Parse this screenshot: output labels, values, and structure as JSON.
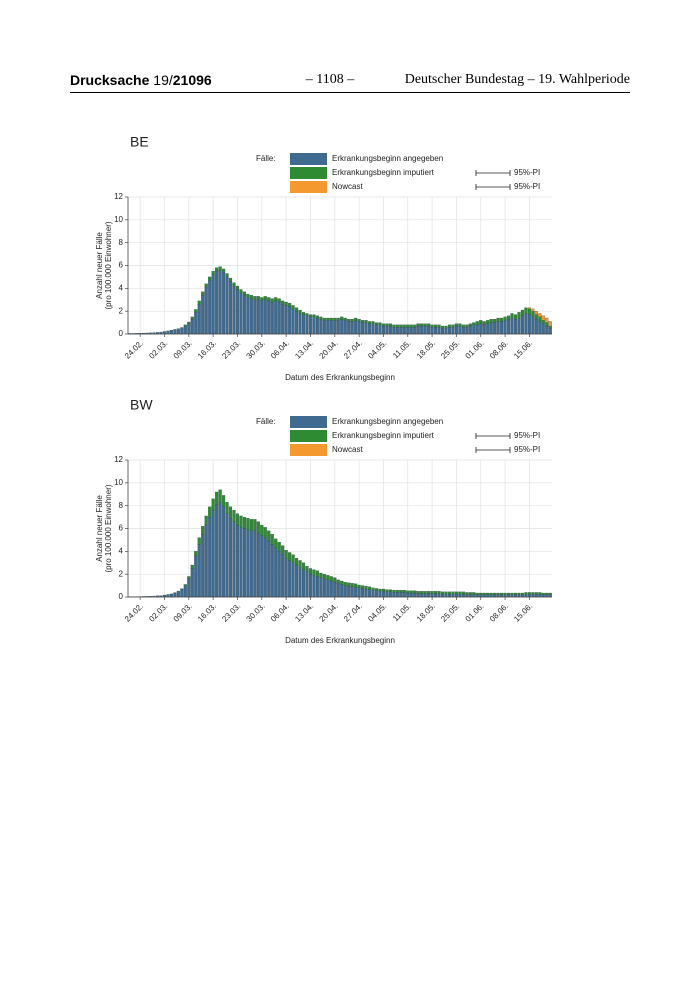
{
  "header": {
    "label": "Drucksache",
    "number_prefix": "19/",
    "number": "21096",
    "page": "– 1108 –",
    "publisher": "Deutscher Bundestag – 19. Wahlperiode"
  },
  "chart_data": [
    {
      "type": "bar",
      "stacked": true,
      "title": "BE",
      "legend_title": "Fälle:",
      "interval_labels": [
        "95%-PI",
        "95%-PI"
      ],
      "ylabel": [
        "Anzahl neuer Fälle",
        "(pro 100.000 Einwohner)"
      ],
      "xlabel": "Datum des Erkrankungsbeginn",
      "ylim": [
        0,
        12
      ],
      "yticks": [
        0,
        2,
        4,
        6,
        8,
        10,
        12
      ],
      "grid": true,
      "categories": [
        null,
        null,
        null,
        "24.02.",
        null,
        null,
        null,
        null,
        null,
        null,
        "02.03.",
        null,
        null,
        null,
        null,
        null,
        null,
        "09.03.",
        null,
        null,
        null,
        null,
        null,
        null,
        "16.03.",
        null,
        null,
        null,
        null,
        null,
        null,
        "23.03.",
        null,
        null,
        null,
        null,
        null,
        null,
        "30.03.",
        null,
        null,
        null,
        null,
        null,
        null,
        "06.04.",
        null,
        null,
        null,
        null,
        null,
        null,
        "13.04.",
        null,
        null,
        null,
        null,
        null,
        null,
        "20.04.",
        null,
        null,
        null,
        null,
        null,
        null,
        "27.04.",
        null,
        null,
        null,
        null,
        null,
        null,
        "04.05.",
        null,
        null,
        null,
        null,
        null,
        null,
        "11.05.",
        null,
        null,
        null,
        null,
        null,
        null,
        "18.05.",
        null,
        null,
        null,
        null,
        null,
        null,
        "25.05.",
        null,
        null,
        null,
        null,
        null,
        null,
        "01.06.",
        null,
        null,
        null,
        null,
        null,
        null,
        "08.06.",
        null,
        null,
        null,
        null,
        null,
        null,
        "15.06.",
        null,
        null,
        null,
        null,
        null,
        null
      ],
      "series": [
        {
          "name": "Erkrankungsbeginn angegeben",
          "color": "#3f6b90",
          "values": [
            0.05,
            0.05,
            0.06,
            0.07,
            0.08,
            0.09,
            0.1,
            0.12,
            0.14,
            0.17,
            0.2,
            0.25,
            0.3,
            0.38,
            0.45,
            0.55,
            0.7,
            0.9,
            1.3,
            1.9,
            2.6,
            3.4,
            4.1,
            4.7,
            5.2,
            5.5,
            5.6,
            5.4,
            5.0,
            4.6,
            4.2,
            3.9,
            3.6,
            3.4,
            3.2,
            3.1,
            3.0,
            3.0,
            2.9,
            3.0,
            2.9,
            2.8,
            2.9,
            2.8,
            2.6,
            2.5,
            2.4,
            2.2,
            2.0,
            1.8,
            1.7,
            1.6,
            1.5,
            1.5,
            1.4,
            1.3,
            1.2,
            1.2,
            1.2,
            1.2,
            1.2,
            1.3,
            1.2,
            1.1,
            1.1,
            1.2,
            1.1,
            1.0,
            1.0,
            0.9,
            0.9,
            0.8,
            0.8,
            0.7,
            0.7,
            0.7,
            0.6,
            0.6,
            0.6,
            0.6,
            0.6,
            0.6,
            0.6,
            0.7,
            0.7,
            0.7,
            0.7,
            0.6,
            0.6,
            0.6,
            0.5,
            0.5,
            0.6,
            0.6,
            0.7,
            0.7,
            0.6,
            0.6,
            0.7,
            0.8,
            0.8,
            0.9,
            0.8,
            0.9,
            1.0,
            1.0,
            1.1,
            1.1,
            1.2,
            1.3,
            1.4,
            1.3,
            1.4,
            1.6,
            1.8,
            1.7,
            1.5,
            1.3,
            1.1,
            0.9,
            0.7,
            0.5
          ]
        },
        {
          "name": "Erkrankungsbeginn imputiert",
          "color": "#2e8b32",
          "values": [
            0,
            0,
            0,
            0,
            0,
            0,
            0,
            0,
            0,
            0,
            0.02,
            0.02,
            0.02,
            0.02,
            0.02,
            0.02,
            0.1,
            0.15,
            0.2,
            0.25,
            0.3,
            0.3,
            0.3,
            0.3,
            0.3,
            0.3,
            0.3,
            0.3,
            0.3,
            0.3,
            0.3,
            0.3,
            0.3,
            0.3,
            0.3,
            0.3,
            0.3,
            0.3,
            0.3,
            0.3,
            0.3,
            0.3,
            0.3,
            0.3,
            0.3,
            0.3,
            0.3,
            0.3,
            0.3,
            0.3,
            0.2,
            0.2,
            0.2,
            0.2,
            0.2,
            0.2,
            0.2,
            0.2,
            0.2,
            0.2,
            0.2,
            0.2,
            0.2,
            0.2,
            0.2,
            0.2,
            0.2,
            0.2,
            0.2,
            0.2,
            0.2,
            0.2,
            0.2,
            0.2,
            0.2,
            0.2,
            0.2,
            0.2,
            0.2,
            0.2,
            0.2,
            0.2,
            0.2,
            0.2,
            0.2,
            0.2,
            0.2,
            0.2,
            0.2,
            0.2,
            0.2,
            0.2,
            0.2,
            0.2,
            0.2,
            0.2,
            0.2,
            0.2,
            0.2,
            0.2,
            0.3,
            0.3,
            0.3,
            0.3,
            0.3,
            0.3,
            0.3,
            0.3,
            0.3,
            0.3,
            0.4,
            0.4,
            0.5,
            0.5,
            0.5,
            0.5,
            0.5,
            0.4,
            0.4,
            0.3,
            0.3,
            0.2
          ]
        },
        {
          "name": "Nowcast",
          "color": "#f4992e",
          "values": [
            0,
            0,
            0,
            0,
            0,
            0,
            0,
            0,
            0,
            0,
            0,
            0,
            0,
            0,
            0,
            0,
            0,
            0,
            0,
            0,
            0,
            0,
            0,
            0,
            0,
            0,
            0,
            0,
            0,
            0,
            0,
            0,
            0,
            0,
            0,
            0,
            0,
            0,
            0,
            0,
            0,
            0,
            0,
            0,
            0,
            0,
            0,
            0,
            0,
            0,
            0,
            0,
            0,
            0,
            0,
            0,
            0,
            0,
            0,
            0,
            0,
            0,
            0,
            0,
            0,
            0,
            0,
            0,
            0,
            0,
            0,
            0,
            0,
            0,
            0,
            0,
            0,
            0,
            0,
            0,
            0,
            0,
            0,
            0,
            0,
            0,
            0,
            0,
            0,
            0,
            0,
            0,
            0,
            0,
            0,
            0,
            0,
            0,
            0,
            0,
            0,
            0,
            0,
            0,
            0,
            0,
            0,
            0,
            0,
            0,
            0,
            0,
            0,
            0,
            0,
            0.1,
            0.2,
            0.3,
            0.3,
            0.4,
            0.4,
            0.4
          ]
        }
      ]
    },
    {
      "type": "bar",
      "stacked": true,
      "title": "BW",
      "legend_title": "Fälle:",
      "interval_labels": [
        "95%-PI",
        "95%-PI"
      ],
      "ylabel": [
        "Anzahl neuer Fälle",
        "(pro 100.000 Einwohner)"
      ],
      "xlabel": "Datum des Erkrankungsbeginn",
      "ylim": [
        0,
        12
      ],
      "yticks": [
        0,
        2,
        4,
        6,
        8,
        10,
        12
      ],
      "grid": true,
      "categories": [
        null,
        null,
        null,
        "24.02.",
        null,
        null,
        null,
        null,
        null,
        null,
        "02.03.",
        null,
        null,
        null,
        null,
        null,
        null,
        "09.03.",
        null,
        null,
        null,
        null,
        null,
        null,
        "16.03.",
        null,
        null,
        null,
        null,
        null,
        null,
        "23.03.",
        null,
        null,
        null,
        null,
        null,
        null,
        "30.03.",
        null,
        null,
        null,
        null,
        null,
        null,
        "06.04.",
        null,
        null,
        null,
        null,
        null,
        null,
        "13.04.",
        null,
        null,
        null,
        null,
        null,
        null,
        "20.04.",
        null,
        null,
        null,
        null,
        null,
        null,
        "27.04.",
        null,
        null,
        null,
        null,
        null,
        null,
        "04.05.",
        null,
        null,
        null,
        null,
        null,
        null,
        "11.05.",
        null,
        null,
        null,
        null,
        null,
        null,
        "18.05.",
        null,
        null,
        null,
        null,
        null,
        null,
        "25.05.",
        null,
        null,
        null,
        null,
        null,
        null,
        "01.06.",
        null,
        null,
        null,
        null,
        null,
        null,
        "08.06.",
        null,
        null,
        null,
        null,
        null,
        null,
        "15.06.",
        null,
        null,
        null,
        null,
        null,
        null
      ],
      "series": [
        {
          "name": "Erkrankungsbeginn angegeben",
          "color": "#3f6b90",
          "values": [
            0.02,
            0.03,
            0.03,
            0.04,
            0.05,
            0.06,
            0.07,
            0.08,
            0.1,
            0.12,
            0.15,
            0.2,
            0.25,
            0.35,
            0.5,
            0.7,
            1.0,
            1.6,
            2.5,
            3.6,
            4.6,
            5.5,
            6.3,
            7.0,
            7.6,
            8.1,
            8.3,
            7.9,
            7.3,
            6.9,
            6.6,
            6.3,
            6.1,
            6.0,
            5.9,
            5.8,
            5.8,
            5.6,
            5.4,
            5.2,
            4.9,
            4.6,
            4.3,
            4.0,
            3.7,
            3.4,
            3.2,
            3.0,
            2.8,
            2.6,
            2.4,
            2.2,
            2.0,
            1.9,
            1.8,
            1.7,
            1.6,
            1.5,
            1.4,
            1.3,
            1.2,
            1.1,
            1.0,
            0.95,
            0.9,
            0.85,
            0.8,
            0.75,
            0.7,
            0.65,
            0.6,
            0.55,
            0.5,
            0.5,
            0.45,
            0.45,
            0.4,
            0.4,
            0.4,
            0.4,
            0.35,
            0.35,
            0.35,
            0.3,
            0.3,
            0.3,
            0.3,
            0.3,
            0.3,
            0.3,
            0.25,
            0.25,
            0.25,
            0.25,
            0.25,
            0.25,
            0.25,
            0.2,
            0.2,
            0.2,
            0.2,
            0.2,
            0.2,
            0.2,
            0.2,
            0.2,
            0.2,
            0.2,
            0.2,
            0.2,
            0.2,
            0.2,
            0.2,
            0.2,
            0.25,
            0.25,
            0.25,
            0.25,
            0.25,
            0.2,
            0.2,
            0.2
          ]
        },
        {
          "name": "Erkrankungsbeginn imputiert",
          "color": "#2e8b32",
          "values": [
            0,
            0,
            0,
            0,
            0,
            0,
            0,
            0,
            0,
            0,
            0.02,
            0.02,
            0.02,
            0.02,
            0.02,
            0.02,
            0.1,
            0.2,
            0.3,
            0.4,
            0.6,
            0.7,
            0.8,
            0.9,
            1.0,
            1.1,
            1.1,
            1.0,
            1.0,
            1.0,
            1.0,
            1.0,
            1.0,
            1.0,
            1.0,
            1.0,
            1.0,
            1.0,
            0.9,
            0.9,
            0.9,
            0.9,
            0.8,
            0.8,
            0.8,
            0.7,
            0.7,
            0.7,
            0.6,
            0.6,
            0.6,
            0.5,
            0.5,
            0.5,
            0.5,
            0.4,
            0.4,
            0.4,
            0.4,
            0.4,
            0.3,
            0.3,
            0.3,
            0.3,
            0.3,
            0.3,
            0.25,
            0.25,
            0.25,
            0.25,
            0.2,
            0.2,
            0.2,
            0.2,
            0.2,
            0.2,
            0.2,
            0.2,
            0.2,
            0.2,
            0.2,
            0.2,
            0.2,
            0.2,
            0.2,
            0.2,
            0.2,
            0.2,
            0.2,
            0.2,
            0.2,
            0.2,
            0.2,
            0.2,
            0.2,
            0.2,
            0.2,
            0.2,
            0.2,
            0.2,
            0.15,
            0.15,
            0.15,
            0.15,
            0.15,
            0.15,
            0.15,
            0.15,
            0.15,
            0.15,
            0.15,
            0.15,
            0.15,
            0.15,
            0.15,
            0.15,
            0.15,
            0.15,
            0.15,
            0.15,
            0.15,
            0.15
          ]
        },
        {
          "name": "Nowcast",
          "color": "#f4992e",
          "values": [
            0,
            0,
            0,
            0,
            0,
            0,
            0,
            0,
            0,
            0,
            0,
            0,
            0,
            0,
            0,
            0,
            0,
            0,
            0,
            0,
            0,
            0,
            0,
            0,
            0,
            0,
            0,
            0,
            0,
            0,
            0,
            0,
            0,
            0,
            0,
            0,
            0,
            0,
            0,
            0,
            0,
            0,
            0,
            0,
            0,
            0,
            0,
            0,
            0,
            0,
            0,
            0,
            0,
            0,
            0,
            0,
            0,
            0,
            0,
            0,
            0,
            0,
            0,
            0,
            0,
            0,
            0,
            0,
            0,
            0,
            0,
            0,
            0,
            0,
            0,
            0,
            0,
            0,
            0,
            0,
            0,
            0,
            0,
            0,
            0,
            0,
            0,
            0,
            0,
            0,
            0,
            0,
            0,
            0,
            0,
            0,
            0,
            0,
            0,
            0,
            0,
            0,
            0,
            0,
            0,
            0,
            0,
            0,
            0,
            0,
            0,
            0,
            0,
            0,
            0,
            0,
            0,
            0,
            0,
            0,
            0,
            0
          ]
        }
      ]
    }
  ]
}
